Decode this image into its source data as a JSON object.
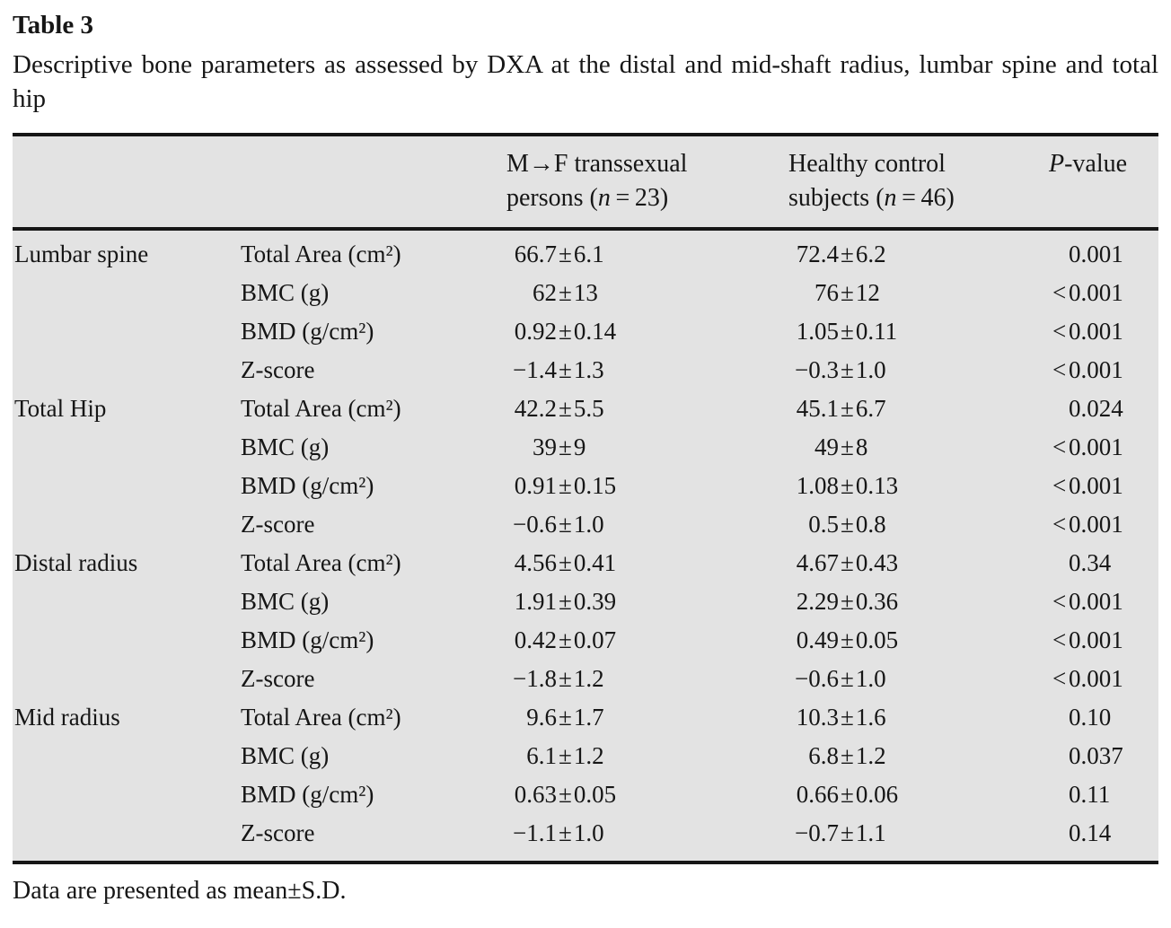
{
  "page": {
    "title": "Table 3",
    "caption": "Descriptive bone parameters as assessed by DXA at the distal and mid-shaft radius, lumbar spine and total hip",
    "footnote": "Data are presented as mean±S.D."
  },
  "table": {
    "header": {
      "mf": {
        "line1": "M→F transsexual",
        "line2_before": "persons (",
        "line2_italic": "n",
        "line2_after": " = 23)"
      },
      "control": {
        "line1": "Healthy control",
        "line2_before": "subjects (",
        "line2_italic": "n",
        "line2_after": " = 46)"
      },
      "pvalue": {
        "italic": "P",
        "rest": "-value"
      }
    },
    "groups": [
      {
        "site": "Lumbar spine",
        "rows": [
          {
            "param": "Total Area (cm²)",
            "mf": "66.7±6.1",
            "control": "72.4±6.2",
            "p": "0.001"
          },
          {
            "param": "BMC (g)",
            "mf": "62±13",
            "control": "76±12",
            "p": "<0.001"
          },
          {
            "param": "BMD (g/cm²)",
            "mf": "0.92±0.14",
            "control": "1.05±0.11",
            "p": "<0.001"
          },
          {
            "param": "Z-score",
            "mf": "−1.4±1.3",
            "control": "−0.3±1.0",
            "p": "<0.001"
          }
        ]
      },
      {
        "site": "Total Hip",
        "rows": [
          {
            "param": "Total Area (cm²)",
            "mf": "42.2±5.5",
            "control": "45.1±6.7",
            "p": "0.024"
          },
          {
            "param": "BMC (g)",
            "mf": "39±9",
            "control": "49±8",
            "p": "<0.001"
          },
          {
            "param": "BMD (g/cm²)",
            "mf": "0.91±0.15",
            "control": "1.08±0.13",
            "p": "<0.001"
          },
          {
            "param": "Z-score",
            "mf": "−0.6±1.0",
            "control": "0.5±0.8",
            "p": "<0.001"
          }
        ]
      },
      {
        "site": "Distal radius",
        "rows": [
          {
            "param": "Total Area (cm²)",
            "mf": "4.56±0.41",
            "control": "4.67±0.43",
            "p": "0.34"
          },
          {
            "param": "BMC (g)",
            "mf": "1.91±0.39",
            "control": "2.29±0.36",
            "p": "<0.001"
          },
          {
            "param": "BMD (g/cm²)",
            "mf": "0.42±0.07",
            "control": "0.49±0.05",
            "p": "<0.001"
          },
          {
            "param": "Z-score",
            "mf": "−1.8±1.2",
            "control": "−0.6±1.0",
            "p": "<0.001"
          }
        ]
      },
      {
        "site": "Mid radius",
        "rows": [
          {
            "param": "Total Area (cm²)",
            "mf": "9.6±1.7",
            "control": "10.3±1.6",
            "p": "0.10"
          },
          {
            "param": "BMC (g)",
            "mf": "6.1±1.2",
            "control": "6.8±1.2",
            "p": "0.037"
          },
          {
            "param": "BMD (g/cm²)",
            "mf": "0.63±0.05",
            "control": "0.66±0.06",
            "p": "0.11"
          },
          {
            "param": "Z-score",
            "mf": "−1.1±1.0",
            "control": "−0.7±1.1",
            "p": "0.14"
          }
        ]
      }
    ]
  },
  "colors": {
    "table_background": "#e3e3e3",
    "rule": "#161616",
    "text": "#161616",
    "page_background": "#ffffff"
  }
}
